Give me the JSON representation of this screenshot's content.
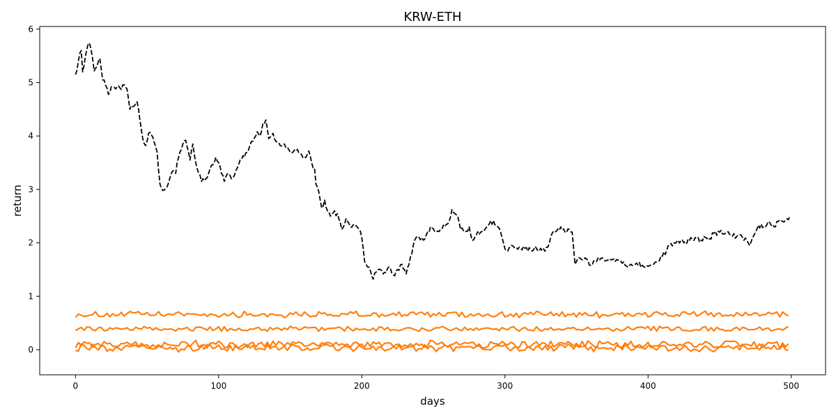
{
  "chart_data": {
    "type": "line",
    "title": "KRW-ETH",
    "xlabel": "days",
    "ylabel": "return",
    "xlim": [
      -25,
      524
    ],
    "ylim": [
      -0.47,
      6.05
    ],
    "xticks": [
      0,
      100,
      200,
      300,
      400,
      500
    ],
    "yticks": [
      0,
      1,
      2,
      3,
      4,
      5,
      6
    ],
    "grid": false,
    "legend": "none",
    "colors": {
      "price": "#000000",
      "returns": "#ff7f0e"
    },
    "price_line": {
      "style": "dashed",
      "color": "#000000",
      "points": [
        [
          0,
          5.15
        ],
        [
          2,
          5.4
        ],
        [
          4,
          5.6
        ],
        [
          5,
          5.2
        ],
        [
          7,
          5.5
        ],
        [
          9,
          5.74
        ],
        [
          11,
          5.6
        ],
        [
          13,
          5.22
        ],
        [
          15,
          5.3
        ],
        [
          17,
          5.45
        ],
        [
          19,
          5.05
        ],
        [
          21,
          4.95
        ],
        [
          23,
          4.78
        ],
        [
          26,
          4.92
        ],
        [
          28,
          4.88
        ],
        [
          31,
          4.9
        ],
        [
          34,
          4.96
        ],
        [
          36,
          4.88
        ],
        [
          38,
          4.5
        ],
        [
          40,
          4.55
        ],
        [
          43,
          4.64
        ],
        [
          45,
          4.3
        ],
        [
          47,
          3.95
        ],
        [
          49,
          3.82
        ],
        [
          51,
          4.05
        ],
        [
          54,
          3.98
        ],
        [
          57,
          3.7
        ],
        [
          59,
          3.1
        ],
        [
          61,
          2.98
        ],
        [
          64,
          3.05
        ],
        [
          66,
          3.22
        ],
        [
          68,
          3.35
        ],
        [
          70,
          3.3
        ],
        [
          72,
          3.6
        ],
        [
          74,
          3.75
        ],
        [
          77,
          3.92
        ],
        [
          80,
          3.55
        ],
        [
          82,
          3.85
        ],
        [
          84,
          3.5
        ],
        [
          86,
          3.3
        ],
        [
          88,
          3.15
        ],
        [
          92,
          3.22
        ],
        [
          95,
          3.45
        ],
        [
          98,
          3.6
        ],
        [
          100,
          3.5
        ],
        [
          102,
          3.3
        ],
        [
          104,
          3.15
        ],
        [
          107,
          3.3
        ],
        [
          109,
          3.2
        ],
        [
          112,
          3.35
        ],
        [
          115,
          3.55
        ],
        [
          118,
          3.6
        ],
        [
          121,
          3.75
        ],
        [
          124,
          3.9
        ],
        [
          127,
          4.08
        ],
        [
          129,
          4.0
        ],
        [
          131,
          4.25
        ],
        [
          133,
          4.3
        ],
        [
          135,
          3.95
        ],
        [
          138,
          4.05
        ],
        [
          140,
          3.9
        ],
        [
          143,
          3.82
        ],
        [
          146,
          3.85
        ],
        [
          149,
          3.75
        ],
        [
          152,
          3.7
        ],
        [
          155,
          3.75
        ],
        [
          158,
          3.65
        ],
        [
          161,
          3.6
        ],
        [
          163,
          3.72
        ],
        [
          165,
          3.5
        ],
        [
          167,
          3.4
        ],
        [
          168,
          3.1
        ],
        [
          170,
          2.95
        ],
        [
          172,
          2.65
        ],
        [
          174,
          2.8
        ],
        [
          176,
          2.6
        ],
        [
          178,
          2.5
        ],
        [
          181,
          2.6
        ],
        [
          184,
          2.45
        ],
        [
          186,
          2.25
        ],
        [
          189,
          2.45
        ],
        [
          192,
          2.3
        ],
        [
          195,
          2.35
        ],
        [
          198,
          2.25
        ],
        [
          200,
          2.1
        ],
        [
          202,
          1.65
        ],
        [
          204,
          1.55
        ],
        [
          206,
          1.48
        ],
        [
          208,
          1.32
        ],
        [
          210,
          1.45
        ],
        [
          213,
          1.5
        ],
        [
          216,
          1.45
        ],
        [
          219,
          1.55
        ],
        [
          222,
          1.4
        ],
        [
          225,
          1.5
        ],
        [
          228,
          1.6
        ],
        [
          231,
          1.42
        ],
        [
          233,
          1.6
        ],
        [
          235,
          1.8
        ],
        [
          237,
          2.05
        ],
        [
          240,
          2.1
        ],
        [
          243,
          2.05
        ],
        [
          246,
          2.2
        ],
        [
          249,
          2.28
        ],
        [
          252,
          2.2
        ],
        [
          255,
          2.25
        ],
        [
          258,
          2.3
        ],
        [
          261,
          2.4
        ],
        [
          263,
          2.62
        ],
        [
          265,
          2.55
        ],
        [
          267,
          2.5
        ],
        [
          269,
          2.25
        ],
        [
          272,
          2.2
        ],
        [
          275,
          2.3
        ],
        [
          277,
          2.05
        ],
        [
          280,
          2.15
        ],
        [
          283,
          2.2
        ],
        [
          286,
          2.25
        ],
        [
          289,
          2.35
        ],
        [
          292,
          2.42
        ],
        [
          295,
          2.3
        ],
        [
          297,
          2.2
        ],
        [
          299,
          2.0
        ],
        [
          301,
          1.85
        ],
        [
          304,
          1.95
        ],
        [
          307,
          1.9
        ],
        [
          310,
          1.92
        ],
        [
          314,
          1.9
        ],
        [
          318,
          1.88
        ],
        [
          322,
          1.9
        ],
        [
          326,
          1.85
        ],
        [
          330,
          1.92
        ],
        [
          333,
          2.18
        ],
        [
          336,
          2.22
        ],
        [
          339,
          2.3
        ],
        [
          342,
          2.2
        ],
        [
          345,
          2.25
        ],
        [
          347,
          2.2
        ],
        [
          349,
          1.6
        ],
        [
          351,
          1.72
        ],
        [
          354,
          1.68
        ],
        [
          357,
          1.7
        ],
        [
          360,
          1.58
        ],
        [
          364,
          1.65
        ],
        [
          368,
          1.72
        ],
        [
          372,
          1.68
        ],
        [
          376,
          1.7
        ],
        [
          380,
          1.68
        ],
        [
          384,
          1.58
        ],
        [
          388,
          1.6
        ],
        [
          392,
          1.62
        ],
        [
          396,
          1.58
        ],
        [
          400,
          1.56
        ],
        [
          404,
          1.6
        ],
        [
          407,
          1.65
        ],
        [
          410,
          1.75
        ],
        [
          413,
          1.85
        ],
        [
          415,
          1.95
        ],
        [
          418,
          2.0
        ],
        [
          421,
          2.05
        ],
        [
          425,
          2.0
        ],
        [
          429,
          2.05
        ],
        [
          433,
          2.1
        ],
        [
          437,
          2.05
        ],
        [
          440,
          2.1
        ],
        [
          443,
          2.08
        ],
        [
          446,
          2.18
        ],
        [
          450,
          2.2
        ],
        [
          454,
          2.18
        ],
        [
          458,
          2.15
        ],
        [
          462,
          2.12
        ],
        [
          466,
          2.1
        ],
        [
          469,
          2.05
        ],
        [
          471,
          1.95
        ],
        [
          473,
          2.1
        ],
        [
          476,
          2.25
        ],
        [
          479,
          2.35
        ],
        [
          482,
          2.3
        ],
        [
          485,
          2.38
        ],
        [
          488,
          2.3
        ],
        [
          491,
          2.4
        ],
        [
          494,
          2.4
        ],
        [
          497,
          2.45
        ],
        [
          499,
          2.5
        ]
      ]
    },
    "series": [
      {
        "x_start": 0,
        "x_end": 499,
        "mean": 0.66,
        "amplitude": 0.05,
        "color": "#ff7f0e"
      },
      {
        "x_start": 0,
        "x_end": 499,
        "mean": 0.39,
        "amplitude": 0.04,
        "color": "#ff7f0e"
      },
      {
        "x_start": 0,
        "x_end": 499,
        "mean": 0.1,
        "amplitude": 0.06,
        "color": "#ff7f0e"
      },
      {
        "x_start": 0,
        "x_end": 499,
        "mean": 0.03,
        "amplitude": 0.06,
        "color": "#ff7f0e"
      }
    ]
  }
}
